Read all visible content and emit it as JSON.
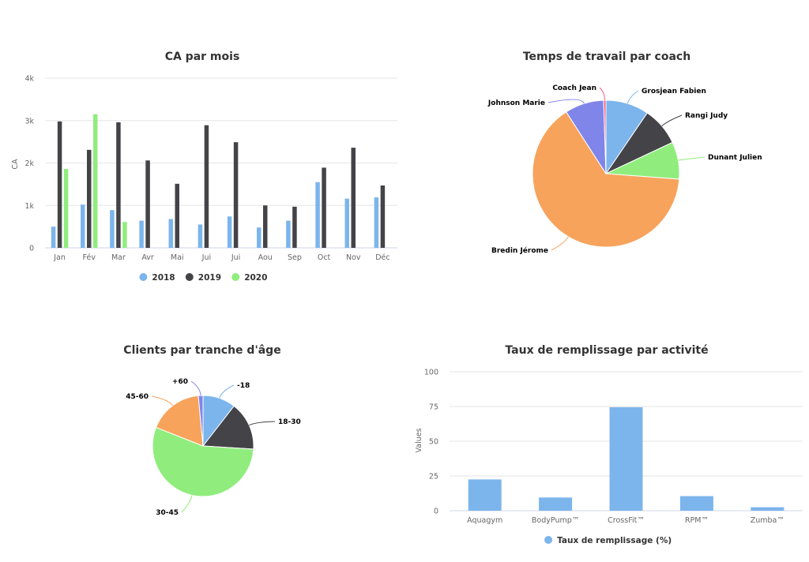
{
  "colors": {
    "2018": "#7cb5ec",
    "2019": "#434348",
    "2020": "#90ed7d",
    "orange": "#f7a35c",
    "purple": "#8085e9",
    "pink": "#f15c80"
  },
  "chart_data": [
    {
      "type": "bar",
      "title": "CA par mois",
      "ylabel": "CA",
      "ylim": [
        0,
        4000
      ],
      "yticks": [
        {
          "v": 0,
          "label": "0"
        },
        {
          "v": 1000,
          "label": "1k"
        },
        {
          "v": 2000,
          "label": "2k"
        },
        {
          "v": 3000,
          "label": "3k"
        },
        {
          "v": 4000,
          "label": "4k"
        }
      ],
      "categories": [
        "Jan",
        "Fév",
        "Mar",
        "Avr",
        "Mai",
        "Jui",
        "Jui",
        "Aou",
        "Sep",
        "Oct",
        "Nov",
        "Déc"
      ],
      "series": [
        {
          "name": "2018",
          "color": "#7cb5ec",
          "values": [
            500,
            1020,
            890,
            640,
            680,
            550,
            740,
            480,
            640,
            1550,
            1160,
            1190
          ]
        },
        {
          "name": "2019",
          "color": "#434348",
          "values": [
            2980,
            2310,
            2960,
            2060,
            1510,
            2890,
            2490,
            1000,
            970,
            1890,
            2360,
            1470
          ]
        },
        {
          "name": "2020",
          "color": "#90ed7d",
          "values": [
            1860,
            3150,
            610,
            null,
            null,
            null,
            null,
            null,
            null,
            null,
            null,
            null
          ]
        }
      ],
      "legend": "bottom-center"
    },
    {
      "type": "pie",
      "title": "Temps de travail par coach",
      "slices": [
        {
          "name": "Grosjean Fabien",
          "value": 9.5,
          "color": "#7cb5ec"
        },
        {
          "name": "Rangi Judy",
          "value": 8.5,
          "color": "#434348"
        },
        {
          "name": "Dunant Julien",
          "value": 8.2,
          "color": "#90ed7d"
        },
        {
          "name": "Bredin Jérome",
          "value": 64.7,
          "color": "#f7a35c"
        },
        {
          "name": "Johnson Marie",
          "value": 8.6,
          "color": "#8085e9"
        },
        {
          "name": "Coach Jean",
          "value": 0.5,
          "color": "#f15c80"
        }
      ]
    },
    {
      "type": "pie",
      "title": "Clients par tranche d'âge",
      "slices": [
        {
          "name": "-18",
          "value": 10.5,
          "color": "#7cb5ec"
        },
        {
          "name": "18-30",
          "value": 15.5,
          "color": "#434348"
        },
        {
          "name": "30-45",
          "value": 55.0,
          "color": "#90ed7d"
        },
        {
          "name": "45-60",
          "value": 17.5,
          "color": "#f7a35c"
        },
        {
          "name": "+60",
          "value": 1.5,
          "color": "#8085e9"
        }
      ]
    },
    {
      "type": "bar",
      "title": "Taux de remplissage par activité",
      "ylabel": "Values",
      "ylim": [
        0,
        100
      ],
      "yticks": [
        {
          "v": 0,
          "label": "0"
        },
        {
          "v": 25,
          "label": "25"
        },
        {
          "v": 50,
          "label": "50"
        },
        {
          "v": 75,
          "label": "75"
        },
        {
          "v": 100,
          "label": "100"
        }
      ],
      "categories": [
        "Aquagym",
        "BodyPump™",
        "CrossFit™",
        "RPM™",
        "Zumba™"
      ],
      "series": [
        {
          "name": "Taux de remplissage (%)",
          "color": "#7cb5ec",
          "values": [
            22.5,
            9.5,
            74.5,
            10.5,
            2.5
          ]
        }
      ],
      "legend": "bottom-center"
    }
  ]
}
